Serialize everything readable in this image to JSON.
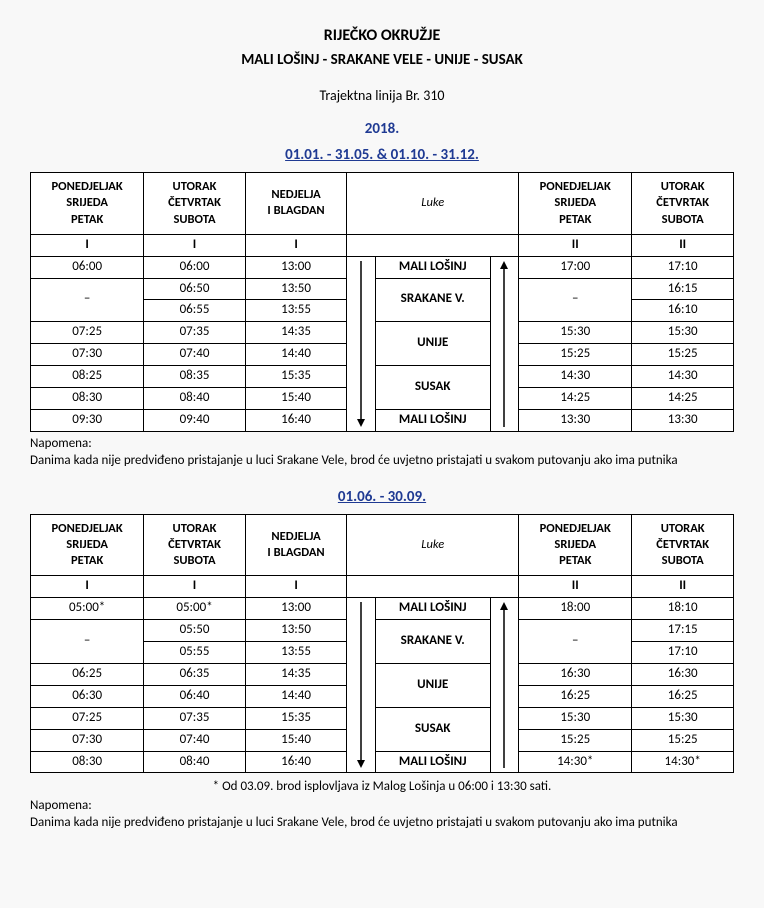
{
  "header": {
    "region": "RIJEČKO OKRUŽJE",
    "route": "MALI LOŠINJ - SRAKANE VELE - UNIJE - SUSAK",
    "line": "Trajektna linija Br. 310",
    "year": "2018."
  },
  "columns": {
    "pon_sri_pet_l1": "PONEDJELJAK",
    "pon_sri_pet_l2": "SRIJEDA",
    "pon_sri_pet_l3": "PETAK",
    "uto_cet_sub_l1": "UTORAK",
    "uto_cet_sub_l2": "ČETVRTAK",
    "uto_cet_sub_l3": "SUBOTA",
    "ned_l1": "NEDJELJA",
    "ned_l2": "I BLAGDAN",
    "luke": "Luke",
    "roman_I": "I",
    "roman_II": "II",
    "dash": "–"
  },
  "ports": {
    "mali_losinj": "MALI LOŠINJ",
    "srakane": "SRAKANE V.",
    "unije": "UNIJE",
    "susak": "SUSAK"
  },
  "table1": {
    "dates": "01.01. - 31.05.  &  01.10. - 31.12.",
    "rows": [
      [
        "06:00",
        "06:00",
        "13:00",
        "mali_losinj",
        "17:00",
        "17:10"
      ],
      [
        null,
        "06:50",
        "13:50",
        "srakane",
        null,
        "16:15"
      ],
      [
        null,
        "06:55",
        "13:55",
        null,
        null,
        "16:10"
      ],
      [
        "07:25",
        "07:35",
        "14:35",
        "unije",
        "15:30",
        "15:30"
      ],
      [
        "07:30",
        "07:40",
        "14:40",
        null,
        "15:25",
        "15:25"
      ],
      [
        "08:25",
        "08:35",
        "15:35",
        "susak",
        "14:30",
        "14:30"
      ],
      [
        "08:30",
        "08:40",
        "15:40",
        null,
        "14:25",
        "14:25"
      ],
      [
        "09:30",
        "09:40",
        "16:40",
        "mali_losinj",
        "13:30",
        "13:30"
      ]
    ],
    "note_head": "Napomena:",
    "note": "Danima kada nije predviđeno pristajanje u luci Srakane Vele, brod će uvjetno pristajati u svakom putovanju ako ima putnika"
  },
  "table2": {
    "dates": "01.06. - 30.09.",
    "rows": [
      [
        "05:00*",
        "05:00*",
        "13:00",
        "mali_losinj",
        "18:00",
        "18:10"
      ],
      [
        null,
        "05:50",
        "13:50",
        "srakane",
        null,
        "17:15"
      ],
      [
        null,
        "05:55",
        "13:55",
        null,
        null,
        "17:10"
      ],
      [
        "06:25",
        "06:35",
        "14:35",
        "unije",
        "16:30",
        "16:30"
      ],
      [
        "06:30",
        "06:40",
        "14:40",
        null,
        "16:25",
        "16:25"
      ],
      [
        "07:25",
        "07:35",
        "15:35",
        "susak",
        "15:30",
        "15:30"
      ],
      [
        "07:30",
        "07:40",
        "15:40",
        null,
        "15:25",
        "15:25"
      ],
      [
        "08:30",
        "08:40",
        "16:40",
        "mali_losinj",
        "14:30*",
        "14:30*"
      ]
    ],
    "asterisk": "*  Od 03.09. brod isplovljava iz Malog Lošinja u 06:00 i 13:30 sati.",
    "note_head": "Napomena:",
    "note": "Danima kada nije predviđeno pristajanje u luci Srakane Vele, brod će uvjetno pristajati u svakom putovanju ako ima putnika"
  },
  "style": {
    "accent_color": "#1f3a93",
    "bg": "#f8f8f8",
    "border": "#000000",
    "font": "Calibri"
  }
}
